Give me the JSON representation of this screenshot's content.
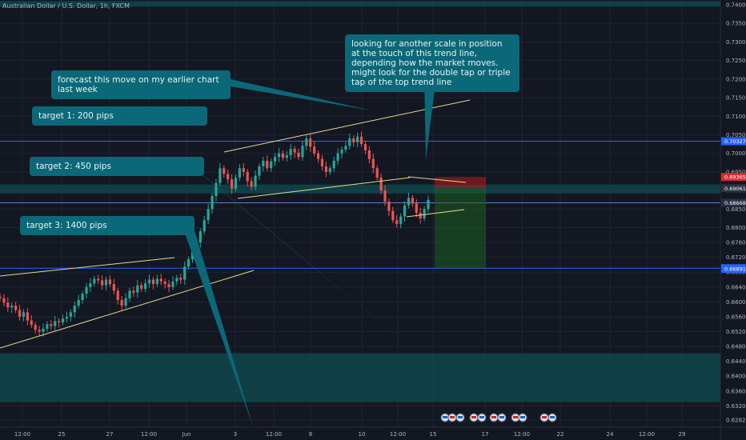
{
  "symbol_title": "Australian Dollar / U.S. Dollar, 1h, FXCM",
  "callouts": {
    "forecast": "forecast this move on my earlier chart last week",
    "target1": "target 1: 200 pips",
    "target2": "target 2: 450 pips",
    "target3": "target 3: 1400 pips",
    "scale": "looking for another scale in position at the touch of this trend line, depending how the market moves. might look for the double tap or triple tap of the top trend line"
  },
  "chart_data": {
    "type": "candlestick",
    "title": "Australian Dollar / U.S. Dollar, 1h, FXCM",
    "ylim": [
      0.6276,
      0.741
    ],
    "y_ticks": [
      "0.74000",
      "0.73500",
      "0.73000",
      "0.72500",
      "0.72000",
      "0.71500",
      "0.71000",
      "0.70500",
      "0.70000",
      "0.69500",
      "0.69000",
      "0.68500",
      "0.68000",
      "0.67600",
      "0.67200",
      "0.66800",
      "0.66400",
      "0.66000",
      "0.65600",
      "0.65200",
      "0.64800",
      "0.64400",
      "0.64000",
      "0.63600",
      "0.63200",
      "0.62820"
    ],
    "x_ticks": [
      "12:00",
      "25",
      "27",
      "12:00",
      "Jun",
      "3",
      "12:00",
      "8",
      "10",
      "12:00",
      "15",
      "17",
      "12:00",
      "22",
      "24",
      "12:00",
      "29"
    ],
    "price_tags": [
      {
        "value": "0.70327",
        "color": "#2962ff"
      },
      {
        "value": "0.69365",
        "color": "#d32f2f"
      },
      {
        "value": "0.69061",
        "color": "#2a3144"
      },
      {
        "value": "0.68668",
        "color": "#2a3144"
      },
      {
        "value": "0.66907",
        "color": "#2962ff"
      },
      {
        "value": "0.66891",
        "color": "#2962ff"
      }
    ],
    "horizontal_lines": [
      0.70327,
      0.68668,
      0.66907
    ],
    "zones": [
      {
        "from": 0.741,
        "to": 0.7395
      },
      {
        "from": 0.6916,
        "to": 0.6892
      },
      {
        "from": 0.6462,
        "to": 0.633
      }
    ],
    "position": {
      "entry": 0.69061,
      "stop": 0.69365,
      "target": 0.66907
    },
    "prices": [
      0.661,
      0.6598,
      0.6585,
      0.659,
      0.6578,
      0.656,
      0.6572,
      0.655,
      0.6538,
      0.6525,
      0.652,
      0.6528,
      0.654,
      0.6535,
      0.6548,
      0.6545,
      0.6555,
      0.656,
      0.6572,
      0.659,
      0.6605,
      0.6622,
      0.664,
      0.665,
      0.6662,
      0.6658,
      0.6645,
      0.666,
      0.6648,
      0.663,
      0.6605,
      0.659,
      0.661,
      0.663,
      0.6625,
      0.6645,
      0.6635,
      0.665,
      0.666,
      0.6648,
      0.6662,
      0.6655,
      0.6648,
      0.664,
      0.6655,
      0.6665,
      0.666,
      0.6695,
      0.6715,
      0.674,
      0.676,
      0.679,
      0.682,
      0.685,
      0.6885,
      0.692,
      0.696,
      0.6945,
      0.693,
      0.6905,
      0.6935,
      0.696,
      0.695,
      0.6925,
      0.691,
      0.694,
      0.6965,
      0.698,
      0.696,
      0.6978,
      0.699,
      0.7,
      0.6988,
      0.6995,
      0.7012,
      0.7002,
      0.699,
      0.702,
      0.704,
      0.7018,
      0.7,
      0.6985,
      0.6965,
      0.695,
      0.696,
      0.698,
      0.7,
      0.701,
      0.702,
      0.704,
      0.703,
      0.7045,
      0.7025,
      0.7008,
      0.6985,
      0.696,
      0.6935,
      0.69,
      0.687,
      0.6845,
      0.682,
      0.681,
      0.683,
      0.686,
      0.688,
      0.6865,
      0.684,
      0.6825,
      0.685,
      0.6875
    ]
  }
}
